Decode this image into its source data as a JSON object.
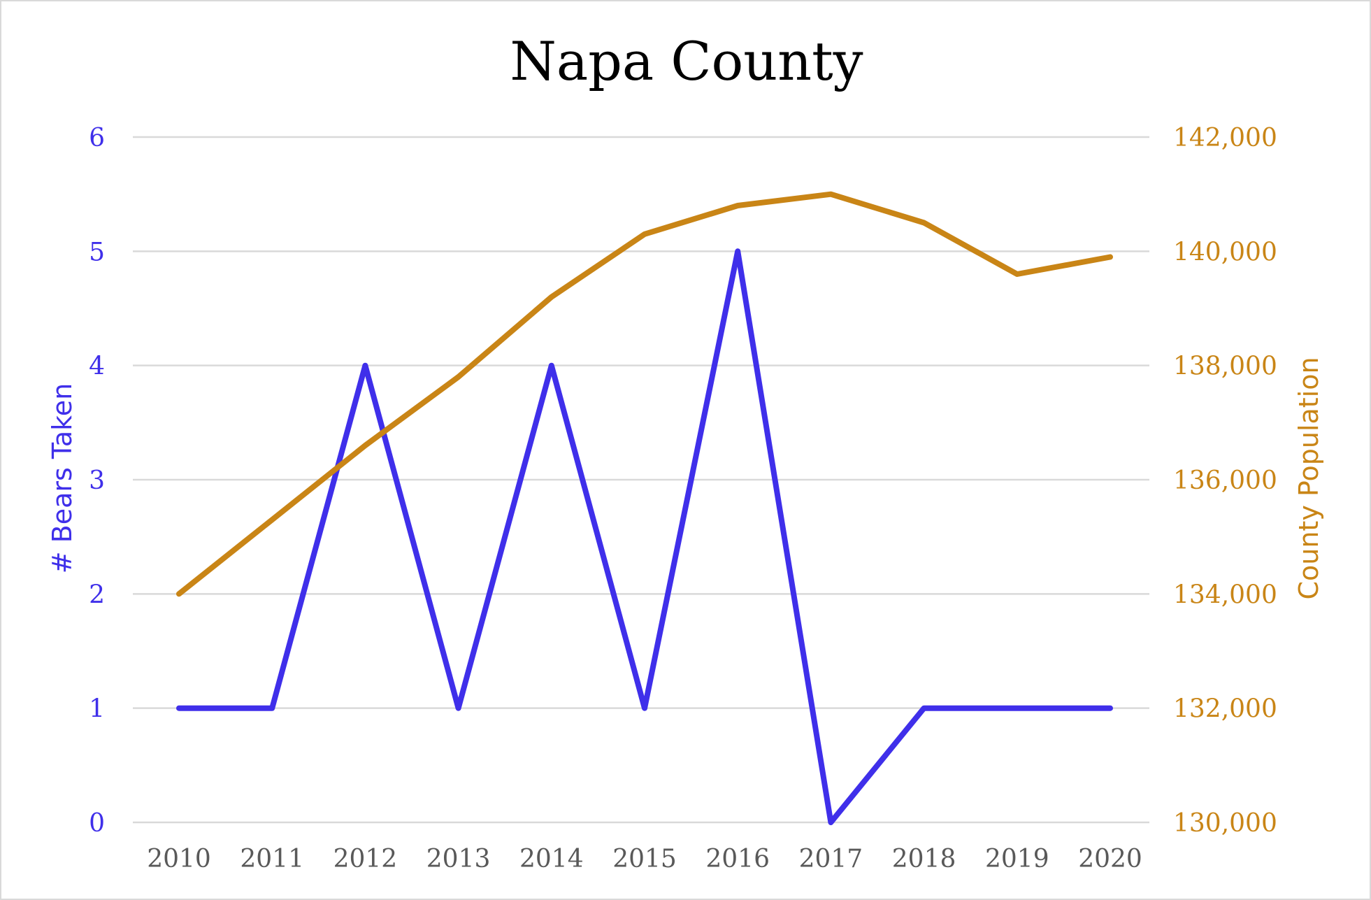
{
  "chart_data": {
    "type": "line",
    "title": "Napa County",
    "categories": [
      "2010",
      "2011",
      "2012",
      "2013",
      "2014",
      "2015",
      "2016",
      "2017",
      "2018",
      "2019",
      "2020"
    ],
    "y_left": {
      "label": "# Bears Taken",
      "range": [
        0,
        6
      ],
      "ticks": [
        "0",
        "1",
        "2",
        "3",
        "4",
        "5",
        "6"
      ],
      "color": "#3F2FEA"
    },
    "y_right": {
      "label": "County Population",
      "range": [
        130000,
        142000
      ],
      "ticks": [
        "130,000",
        "132,000",
        "134,000",
        "136,000",
        "138,000",
        "140,000",
        "142,000"
      ],
      "color": "#C98516"
    },
    "series": [
      {
        "axis": "left",
        "color": "#3F2FEA",
        "values": [
          1,
          1,
          4,
          1,
          4,
          1,
          5,
          0,
          1,
          1,
          1
        ]
      },
      {
        "axis": "right",
        "color": "#C98516",
        "values": [
          134000,
          135300,
          136600,
          137800,
          139200,
          140300,
          140800,
          141000,
          140500,
          139600,
          139900
        ]
      }
    ],
    "grid": true,
    "legend": "none"
  }
}
